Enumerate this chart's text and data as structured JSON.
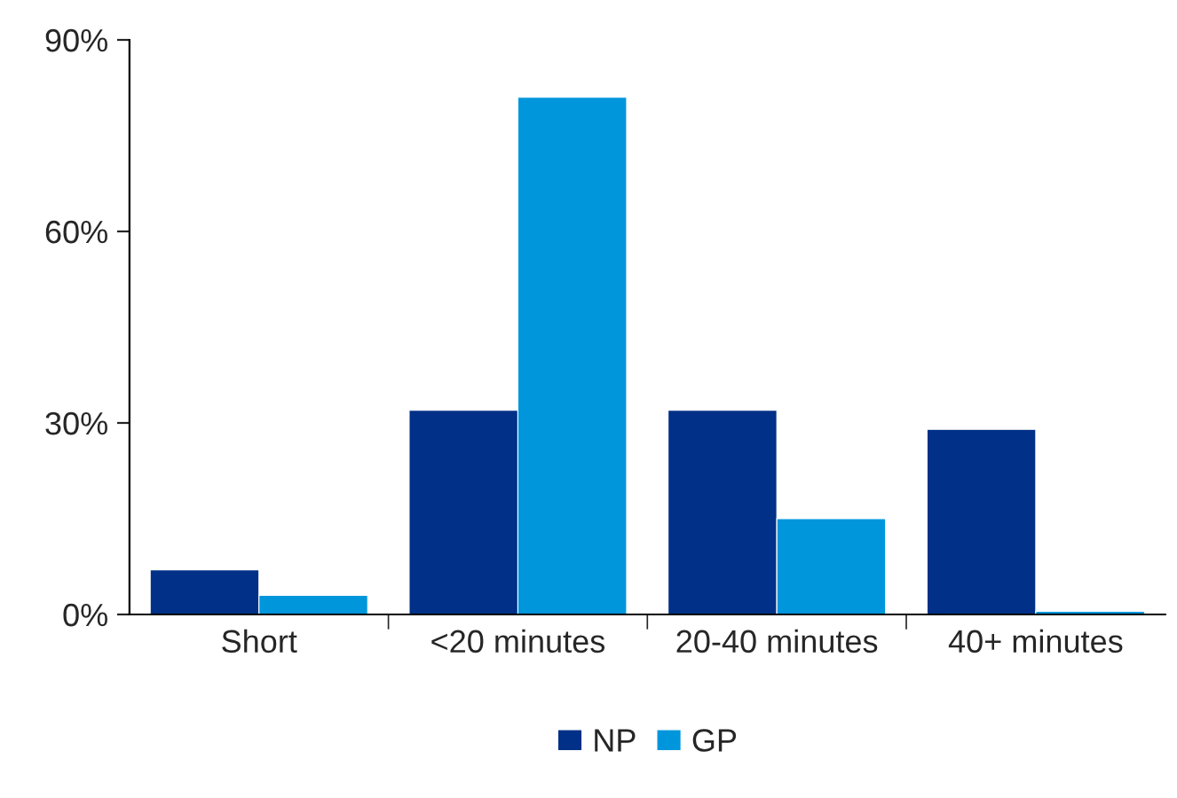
{
  "chart_data": {
    "type": "bar",
    "categories": [
      "Short",
      "<20 minutes",
      "20-40 minutes",
      "40+ minutes"
    ],
    "series": [
      {
        "name": "NP",
        "color": "#003087",
        "values": [
          7,
          32,
          32,
          29
        ]
      },
      {
        "name": "GP",
        "color": "#0096dc",
        "values": [
          3,
          81,
          15,
          0.5
        ]
      }
    ],
    "ylim": [
      0,
      90
    ],
    "yticks": [
      {
        "value": 0,
        "label": "0%"
      },
      {
        "value": 30,
        "label": "30%"
      },
      {
        "value": 60,
        "label": "60%"
      },
      {
        "value": 90,
        "label": "90%"
      }
    ],
    "grid": false,
    "legend": "bottom"
  }
}
